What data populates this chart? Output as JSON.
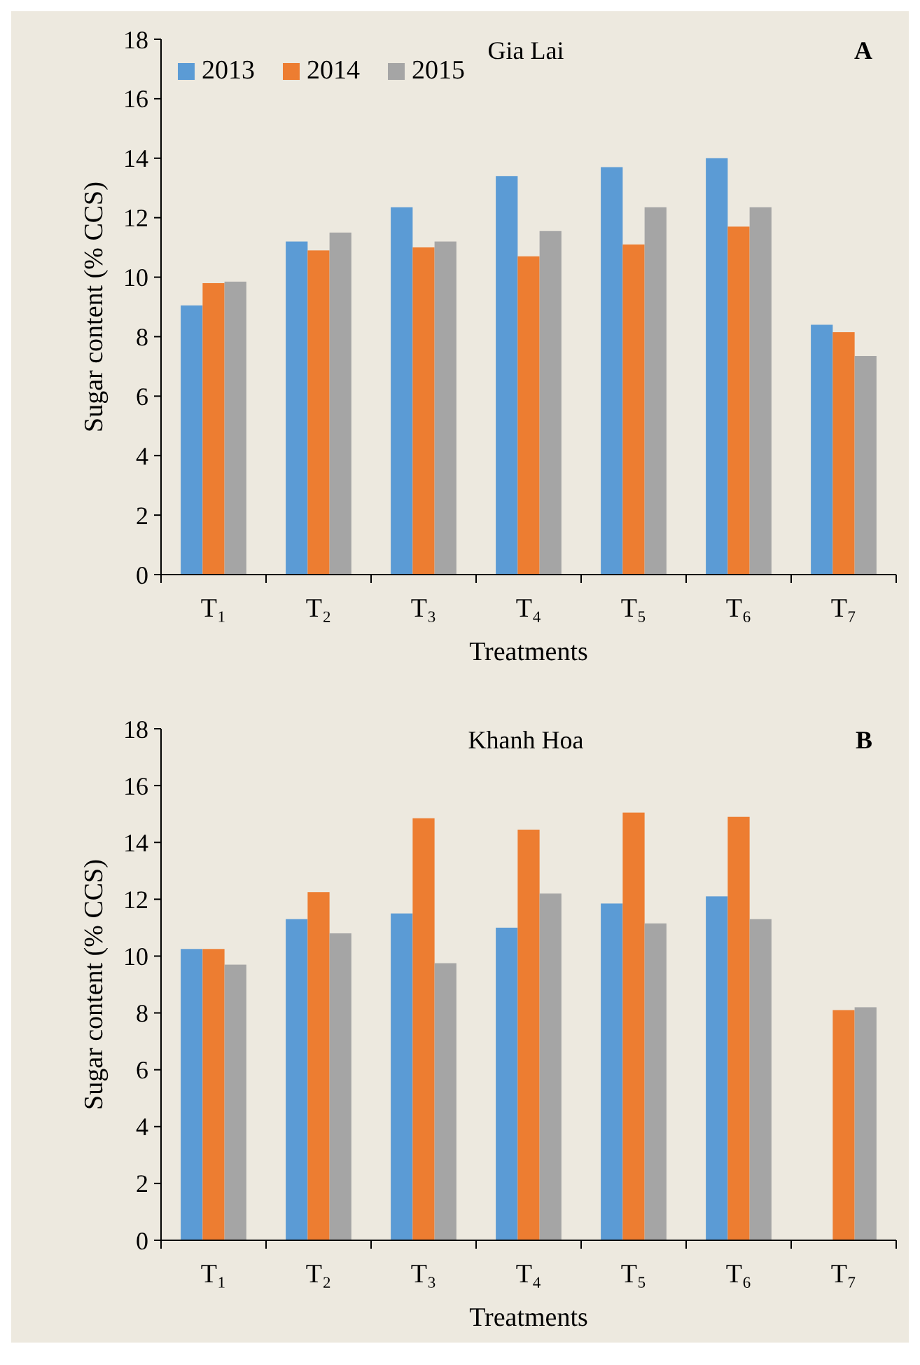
{
  "chart_data": [
    {
      "type": "bar",
      "title": "Gia Lai",
      "xlabel": "Treatments",
      "ylabel": "Sugar content (% CCS)",
      "annotations": [
        "A"
      ],
      "categories": [
        "T₁",
        "T₂",
        "T₃",
        "T₄",
        "T₅",
        "T₆",
        "T₇"
      ],
      "series": [
        {
          "name": "2013",
          "color": "#5b9bd5",
          "values": [
            9.05,
            11.2,
            12.35,
            13.4,
            13.7,
            14.0,
            8.4
          ]
        },
        {
          "name": "2014",
          "color": "#ed7d31",
          "values": [
            9.8,
            10.9,
            11.0,
            10.7,
            11.1,
            11.7,
            8.15
          ]
        },
        {
          "name": "2015",
          "color": "#a5a5a5",
          "values": [
            9.85,
            11.5,
            11.2,
            11.55,
            12.35,
            12.35,
            7.35
          ]
        }
      ],
      "ylim": [
        0,
        18
      ],
      "yticks": [
        0,
        2,
        4,
        6,
        8,
        10,
        12,
        14,
        16,
        18
      ],
      "grid": false,
      "legend": "top left"
    },
    {
      "type": "bar",
      "title": "Khanh Hoa",
      "xlabel": "Treatments",
      "ylabel": "Sugar content (% CCS)",
      "annotations": [
        "B"
      ],
      "categories": [
        "T₁",
        "T₂",
        "T₃",
        "T₄",
        "T₅",
        "T₆",
        "T₇"
      ],
      "series": [
        {
          "color": "#5b9bd5",
          "values": [
            10.25,
            11.3,
            11.5,
            11.0,
            11.85,
            12.1,
            null
          ]
        },
        {
          "color": "#ed7d31",
          "values": [
            10.25,
            12.25,
            14.85,
            14.45,
            15.05,
            14.9,
            8.1
          ]
        },
        {
          "color": "#a5a5a5",
          "values": [
            9.7,
            10.8,
            9.75,
            12.2,
            11.15,
            11.3,
            8.2
          ]
        }
      ],
      "ylim": [
        0,
        18
      ],
      "yticks": [
        0,
        2,
        4,
        6,
        8,
        10,
        12,
        14,
        16,
        18
      ],
      "grid": false,
      "legend": false
    }
  ]
}
